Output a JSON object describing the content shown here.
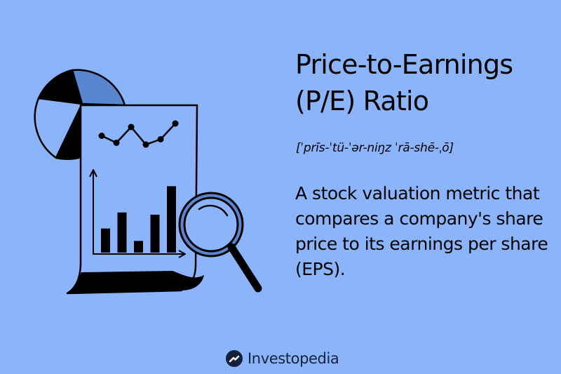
{
  "title": "Price-to-Earnings\n(P/E) Ratio",
  "pronunciation": "[ˈprīs-ˈtü-ˈər-niŋz ˈrā-shē-ˌō]",
  "definition": "A stock valuation metric that compares a company's share price to its earnings per share (EPS).",
  "brand": {
    "name": "Investopedia",
    "logo_icon": "investopedia-logo-icon"
  },
  "illustration": {
    "icons": [
      "pie-chart-icon",
      "document-icon",
      "line-chart-icon",
      "bar-chart-icon",
      "magnifying-glass-icon"
    ],
    "line_points": [
      0.35,
      0.55,
      0.1,
      0.6,
      0.45,
      0.0
    ],
    "bar_heights": [
      0.33,
      0.55,
      0.16,
      0.52,
      0.91
    ]
  },
  "colors": {
    "background": "#8bb4fb",
    "ink": "#000000",
    "pie_accent": "#5a86cf",
    "brand_text": "#14213d"
  }
}
